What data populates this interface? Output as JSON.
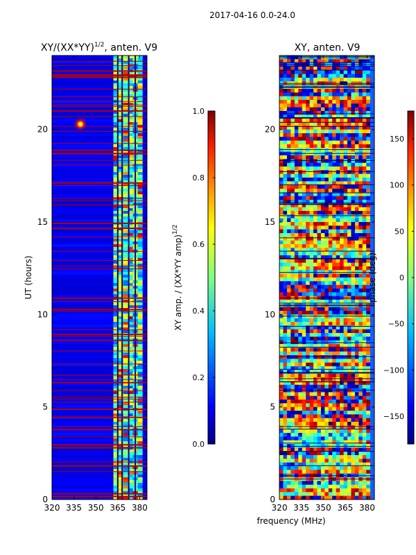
{
  "figure": {
    "suptitle": "2017-04-16 0.0-24.0",
    "xlabel": "frequency (MHz)"
  },
  "chart_data": [
    {
      "type": "heatmap",
      "title_main": "XY/(XX*YY)",
      "title_exp": "1/2",
      "title_tail": ", anten. V9",
      "xlabel": "",
      "ylabel": "UT (hours)",
      "xlim": [
        320,
        385
      ],
      "ylim": [
        0,
        24
      ],
      "xticks": [
        "320",
        "335",
        "350",
        "365",
        "380"
      ],
      "yticks": [
        "0",
        "5",
        "10",
        "15",
        "20"
      ],
      "colormap": "jet",
      "colorbar": {
        "label_main": "XY amp. / (XX*YY amp)",
        "label_exp": "1/2",
        "range": [
          0.0,
          1.0
        ],
        "ticks": [
          "0.0",
          "0.2",
          "0.4",
          "0.6",
          "0.8",
          "1.0"
        ]
      },
      "features": {
        "low_band_mhz": [
          320,
          362
        ],
        "high_band_mhz": [
          362,
          382
        ],
        "band_gap_columns_mhz": [
          365,
          368,
          372.5,
          377
        ],
        "bright_spot": {
          "freq_mhz": 339,
          "ut_hours": 20.2,
          "value": 1.0
        }
      }
    },
    {
      "type": "heatmap",
      "title_main": "XY, anten. V9",
      "xlabel": "",
      "ylabel": "",
      "xlim": [
        320,
        385
      ],
      "ylim": [
        0,
        24
      ],
      "xticks": [
        "320",
        "335",
        "350",
        "365",
        "380"
      ],
      "yticks": [
        "0",
        "5",
        "10",
        "15",
        "20"
      ],
      "colormap": "jet",
      "colorbar": {
        "label_main": "phase (deg)",
        "range": [
          -180,
          180
        ],
        "ticks": [
          "−150",
          "−100",
          "−50",
          "0",
          "50",
          "100",
          "150"
        ]
      }
    }
  ],
  "colors": {
    "jet_stops": [
      "#000080",
      "#0000ff",
      "#0080ff",
      "#00ffff",
      "#80ff80",
      "#ffff00",
      "#ff8000",
      "#ff0000",
      "#800000"
    ],
    "flag_line": "#b40000"
  }
}
